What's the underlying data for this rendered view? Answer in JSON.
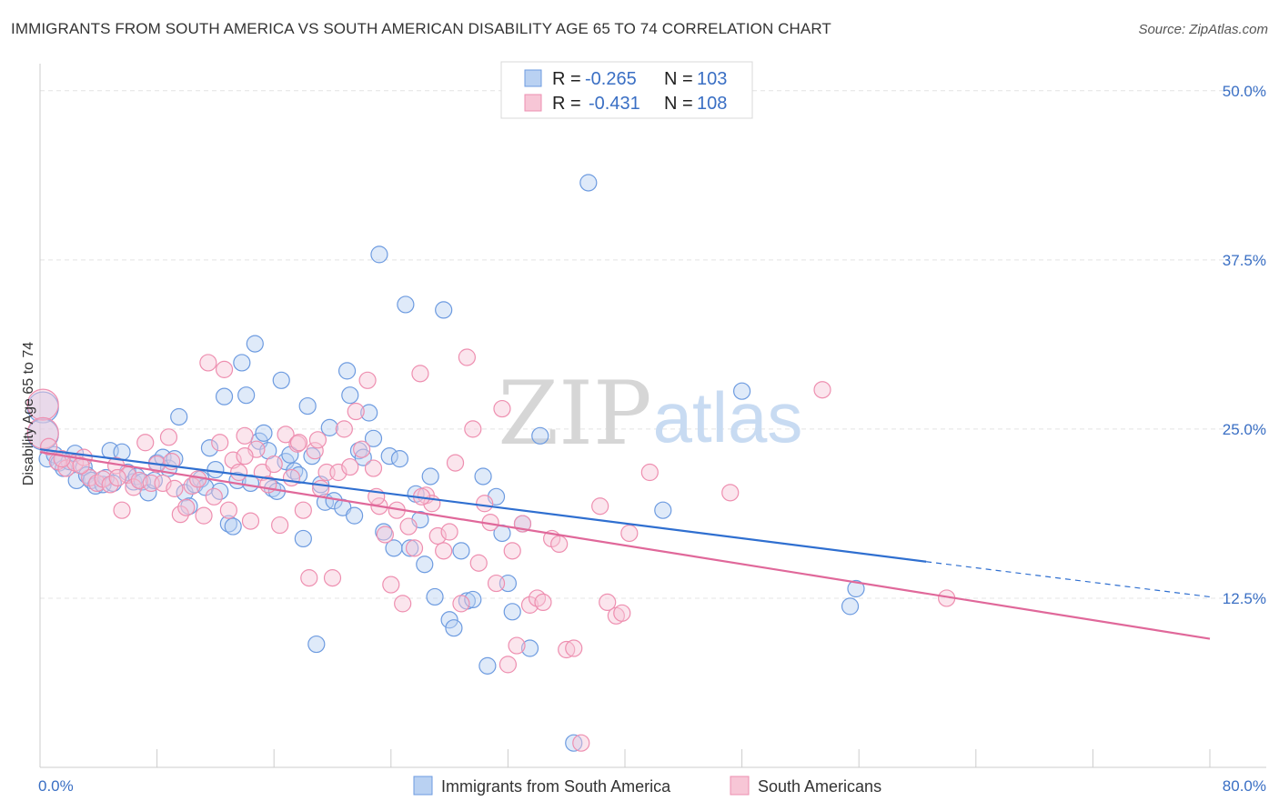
{
  "header": {
    "title": "IMMIGRANTS FROM SOUTH AMERICA VS SOUTH AMERICAN DISABILITY AGE 65 TO 74 CORRELATION CHART",
    "source": "Source: ZipAtlas.com"
  },
  "watermark": {
    "zip": "ZIP",
    "atlas": "atlas"
  },
  "stats_legend": {
    "rows": [
      {
        "r_label": "R =",
        "r_value": "-0.265",
        "n_label": "N =",
        "n_value": "103",
        "color": "#6d9be0"
      },
      {
        "r_label": "R =",
        "r_value": "-0.431",
        "n_label": "N =",
        "n_value": "108",
        "color": "#ee8fb0"
      }
    ]
  },
  "chart_data": {
    "type": "scatter",
    "title": "IMMIGRANTS FROM SOUTH AMERICA VS SOUTH AMERICAN DISABILITY AGE 65 TO 74 CORRELATION CHART",
    "ylabel": "Disability Age 65 to 74",
    "xlabel": "",
    "xlim": [
      0,
      80
    ],
    "ylim": [
      0,
      52
    ],
    "y_ticks": [
      {
        "value": 12.5,
        "label": "12.5%"
      },
      {
        "value": 25.0,
        "label": "25.0%"
      },
      {
        "value": 37.5,
        "label": "37.5%"
      },
      {
        "value": 50.0,
        "label": "50.0%"
      }
    ],
    "x_tick_labels": {
      "left": "0.0%",
      "right": "80.0%"
    },
    "grid": true,
    "legend_position": "bottom",
    "series": [
      {
        "name": "Immigrants from South America",
        "color": "#6d9be0",
        "fill": "#b9d1f2",
        "trend": {
          "x0": 0,
          "y0": 23.5,
          "x1": 60.6,
          "y1": 15.2,
          "dash_to_x": 80,
          "dash_to_y": 12.6
        },
        "points": [
          [
            0.2,
            26.6
          ],
          [
            0.2,
            24.6
          ],
          [
            0.5,
            22.8
          ],
          [
            1.0,
            23.1
          ],
          [
            1.3,
            22.5
          ],
          [
            1.6,
            22.1
          ],
          [
            2.0,
            22.6
          ],
          [
            2.4,
            23.2
          ],
          [
            2.5,
            21.2
          ],
          [
            3.0,
            22.2
          ],
          [
            3.2,
            21.6
          ],
          [
            3.5,
            21.2
          ],
          [
            3.8,
            20.8
          ],
          [
            4.3,
            20.9
          ],
          [
            4.5,
            21.4
          ],
          [
            4.8,
            23.4
          ],
          [
            5.0,
            21.0
          ],
          [
            5.6,
            23.3
          ],
          [
            6.0,
            21.8
          ],
          [
            6.4,
            21.1
          ],
          [
            6.6,
            21.5
          ],
          [
            7.0,
            21.1
          ],
          [
            7.4,
            20.3
          ],
          [
            7.8,
            21.2
          ],
          [
            8.0,
            22.5
          ],
          [
            8.4,
            22.9
          ],
          [
            8.8,
            22.1
          ],
          [
            9.2,
            22.8
          ],
          [
            9.5,
            25.9
          ],
          [
            9.9,
            20.3
          ],
          [
            10.2,
            19.3
          ],
          [
            10.6,
            20.9
          ],
          [
            11.0,
            21.3
          ],
          [
            11.3,
            20.7
          ],
          [
            11.6,
            23.6
          ],
          [
            12.0,
            22.0
          ],
          [
            12.3,
            20.4
          ],
          [
            12.6,
            27.4
          ],
          [
            12.9,
            18.0
          ],
          [
            13.2,
            17.8
          ],
          [
            13.5,
            21.2
          ],
          [
            13.8,
            29.9
          ],
          [
            14.1,
            27.5
          ],
          [
            14.4,
            21.0
          ],
          [
            14.7,
            31.3
          ],
          [
            15.0,
            24.1
          ],
          [
            15.3,
            24.7
          ],
          [
            15.6,
            23.4
          ],
          [
            15.9,
            20.6
          ],
          [
            16.2,
            20.4
          ],
          [
            16.5,
            28.6
          ],
          [
            16.8,
            22.6
          ],
          [
            17.1,
            23.1
          ],
          [
            17.4,
            21.9
          ],
          [
            17.7,
            21.6
          ],
          [
            18.0,
            16.9
          ],
          [
            18.3,
            26.7
          ],
          [
            18.6,
            23.0
          ],
          [
            18.9,
            9.1
          ],
          [
            19.2,
            20.9
          ],
          [
            19.5,
            19.6
          ],
          [
            19.8,
            25.1
          ],
          [
            20.1,
            19.7
          ],
          [
            20.7,
            19.2
          ],
          [
            21.0,
            29.3
          ],
          [
            21.2,
            27.5
          ],
          [
            21.5,
            18.6
          ],
          [
            21.8,
            23.4
          ],
          [
            22.1,
            22.9
          ],
          [
            22.5,
            26.2
          ],
          [
            22.8,
            24.3
          ],
          [
            23.2,
            37.9
          ],
          [
            23.5,
            17.4
          ],
          [
            23.9,
            23.0
          ],
          [
            24.2,
            16.2
          ],
          [
            24.6,
            22.8
          ],
          [
            25.0,
            34.2
          ],
          [
            25.3,
            16.2
          ],
          [
            25.7,
            20.2
          ],
          [
            26.0,
            18.3
          ],
          [
            26.3,
            15.0
          ],
          [
            26.7,
            21.5
          ],
          [
            27.0,
            12.6
          ],
          [
            27.6,
            33.8
          ],
          [
            28.0,
            10.9
          ],
          [
            28.3,
            10.3
          ],
          [
            28.8,
            16.0
          ],
          [
            29.2,
            12.3
          ],
          [
            29.6,
            12.4
          ],
          [
            30.3,
            21.5
          ],
          [
            30.6,
            7.5
          ],
          [
            31.2,
            20.0
          ],
          [
            31.6,
            17.3
          ],
          [
            32.0,
            13.6
          ],
          [
            32.3,
            11.5
          ],
          [
            33.0,
            18.0
          ],
          [
            33.5,
            8.8
          ],
          [
            34.2,
            24.5
          ],
          [
            37.5,
            43.2
          ],
          [
            42.6,
            19.0
          ],
          [
            48.0,
            27.8
          ],
          [
            55.4,
            11.9
          ],
          [
            55.8,
            13.2
          ],
          [
            36.5,
            1.8
          ]
        ]
      },
      {
        "name": "South Americans",
        "color": "#ee8fb0",
        "fill": "#f7c6d6",
        "trend": {
          "x0": 0,
          "y0": 23.3,
          "x1": 80,
          "y1": 9.5
        },
        "points": [
          [
            0.2,
            26.8
          ],
          [
            0.2,
            24.7
          ],
          [
            0.6,
            23.7
          ],
          [
            1.2,
            22.6
          ],
          [
            1.8,
            22.1
          ],
          [
            2.4,
            22.5
          ],
          [
            3.0,
            22.9
          ],
          [
            3.4,
            21.4
          ],
          [
            3.9,
            21.0
          ],
          [
            4.3,
            21.3
          ],
          [
            4.8,
            20.9
          ],
          [
            5.2,
            22.3
          ],
          [
            5.6,
            19.0
          ],
          [
            6.0,
            21.6
          ],
          [
            6.4,
            20.7
          ],
          [
            6.8,
            21.2
          ],
          [
            7.2,
            24.0
          ],
          [
            7.6,
            21.0
          ],
          [
            8.0,
            22.4
          ],
          [
            8.4,
            21.0
          ],
          [
            8.8,
            24.4
          ],
          [
            9.2,
            20.6
          ],
          [
            9.6,
            18.7
          ],
          [
            10.0,
            19.2
          ],
          [
            10.4,
            20.8
          ],
          [
            10.8,
            21.3
          ],
          [
            11.2,
            18.6
          ],
          [
            11.5,
            29.9
          ],
          [
            11.9,
            20.0
          ],
          [
            12.3,
            24.0
          ],
          [
            12.6,
            29.4
          ],
          [
            12.9,
            19.0
          ],
          [
            13.2,
            22.7
          ],
          [
            13.6,
            21.8
          ],
          [
            14.0,
            24.5
          ],
          [
            14.4,
            18.2
          ],
          [
            14.8,
            23.5
          ],
          [
            15.2,
            21.8
          ],
          [
            15.6,
            20.9
          ],
          [
            16.0,
            22.4
          ],
          [
            16.4,
            17.9
          ],
          [
            16.8,
            24.6
          ],
          [
            17.2,
            21.4
          ],
          [
            17.6,
            23.9
          ],
          [
            18.0,
            19.0
          ],
          [
            18.4,
            14.0
          ],
          [
            18.8,
            23.4
          ],
          [
            19.2,
            20.6
          ],
          [
            19.6,
            21.8
          ],
          [
            20.0,
            14.0
          ],
          [
            20.4,
            21.8
          ],
          [
            20.8,
            25.0
          ],
          [
            21.2,
            22.2
          ],
          [
            21.6,
            26.3
          ],
          [
            22.0,
            23.5
          ],
          [
            22.4,
            28.6
          ],
          [
            22.8,
            22.1
          ],
          [
            23.2,
            19.3
          ],
          [
            23.6,
            17.2
          ],
          [
            24.0,
            13.5
          ],
          [
            24.4,
            19.0
          ],
          [
            24.8,
            12.1
          ],
          [
            25.2,
            17.8
          ],
          [
            25.6,
            16.2
          ],
          [
            26.0,
            29.1
          ],
          [
            26.4,
            20.1
          ],
          [
            26.8,
            19.5
          ],
          [
            27.2,
            17.1
          ],
          [
            27.6,
            16.0
          ],
          [
            28.0,
            17.4
          ],
          [
            28.4,
            22.5
          ],
          [
            28.8,
            12.1
          ],
          [
            29.2,
            30.3
          ],
          [
            29.6,
            25.0
          ],
          [
            30.0,
            15.1
          ],
          [
            30.4,
            19.5
          ],
          [
            30.8,
            18.1
          ],
          [
            31.2,
            13.6
          ],
          [
            31.6,
            26.5
          ],
          [
            32.0,
            7.6
          ],
          [
            32.3,
            16.0
          ],
          [
            32.6,
            9.0
          ],
          [
            33.0,
            18.0
          ],
          [
            33.5,
            12.0
          ],
          [
            34.0,
            12.5
          ],
          [
            34.4,
            12.2
          ],
          [
            35.0,
            16.9
          ],
          [
            35.5,
            16.5
          ],
          [
            36.0,
            8.7
          ],
          [
            36.5,
            8.8
          ],
          [
            37.0,
            1.8
          ],
          [
            38.3,
            19.3
          ],
          [
            38.8,
            12.2
          ],
          [
            39.4,
            11.2
          ],
          [
            39.8,
            11.4
          ],
          [
            40.3,
            17.3
          ],
          [
            41.7,
            21.8
          ],
          [
            47.2,
            20.3
          ],
          [
            53.5,
            27.9
          ],
          [
            62.0,
            12.5
          ],
          [
            26.1,
            20.0
          ],
          [
            23.0,
            20.0
          ],
          [
            19.0,
            24.2
          ],
          [
            17.7,
            24.0
          ],
          [
            14.0,
            23.0
          ],
          [
            9.0,
            22.6
          ],
          [
            5.3,
            21.4
          ],
          [
            2.8,
            22.3
          ],
          [
            1.5,
            22.8
          ]
        ]
      }
    ]
  },
  "bottom_legend": {
    "items": [
      {
        "label": "Immigrants from South America",
        "color": "#6d9be0",
        "fill": "#b9d1f2"
      },
      {
        "label": "South Americans",
        "color": "#ee8fb0",
        "fill": "#f7c6d6"
      }
    ]
  }
}
